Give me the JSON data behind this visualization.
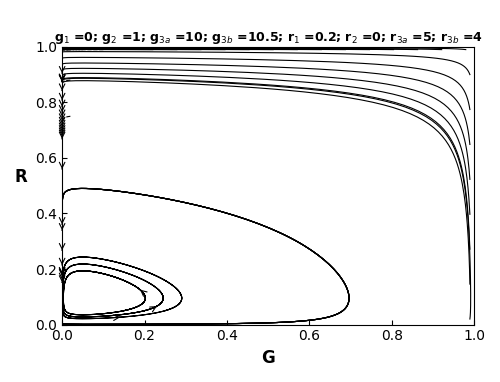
{
  "g1": 0,
  "g2": 1,
  "g3a": 10,
  "g3b": 10.5,
  "r1": 0.2,
  "r2": 0,
  "r3a": 5,
  "r3b": 4,
  "xlabel": "G",
  "ylabel": "R",
  "xlim": [
    0,
    1
  ],
  "ylim": [
    0,
    1
  ],
  "figsize": [
    5.0,
    3.82
  ],
  "dpi": 100,
  "title_str": "g$_1$ =0; g$_2$ =1; g$_{3a}$ =10; g$_{3b}$ =10.5; r$_1$ =0.2; r$_2$ =0; r$_{3a}$ =5; r$_{3b}$ =4"
}
